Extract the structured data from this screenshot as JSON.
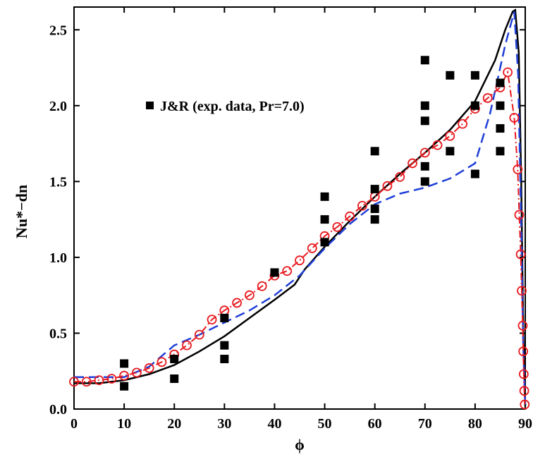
{
  "chart_data": {
    "type": "scatter",
    "xlabel": "ϕ",
    "ylabel": "Nu*−dn",
    "xlim": [
      0,
      90
    ],
    "ylim": [
      0,
      2.65
    ],
    "x_ticks": [
      "0",
      "10",
      "20",
      "30",
      "40",
      "50",
      "60",
      "70",
      "80",
      "90"
    ],
    "y_ticks": [
      "0.0",
      "0.5",
      "1.0",
      "1.5",
      "2.0",
      "2.5"
    ],
    "grid": false,
    "legend_position": "top-left",
    "legend": [
      {
        "label": "J&R (exp. data, Pr=7.0)",
        "marker": "square",
        "color": "#000000"
      }
    ],
    "series": [
      {
        "name": "J&R (exp. data, Pr=7.0)",
        "style": "markers-square",
        "color": "#000000",
        "points": [
          [
            10,
            0.15
          ],
          [
            10,
            0.3
          ],
          [
            20,
            0.2
          ],
          [
            20,
            0.33
          ],
          [
            30,
            0.33
          ],
          [
            30,
            0.42
          ],
          [
            30,
            0.6
          ],
          [
            40,
            0.9
          ],
          [
            50,
            1.1
          ],
          [
            50,
            1.25
          ],
          [
            50,
            1.4
          ],
          [
            60,
            1.25
          ],
          [
            60,
            1.32
          ],
          [
            60,
            1.45
          ],
          [
            60,
            1.7
          ],
          [
            70,
            1.5
          ],
          [
            70,
            1.6
          ],
          [
            70,
            1.9
          ],
          [
            70,
            2.0
          ],
          [
            70,
            2.3
          ],
          [
            75,
            1.7
          ],
          [
            75,
            2.2
          ],
          [
            80,
            1.55
          ],
          [
            80,
            2.0
          ],
          [
            80,
            2.2
          ],
          [
            85,
            1.7
          ],
          [
            85,
            1.85
          ],
          [
            85,
            2.0
          ],
          [
            85,
            2.15
          ]
        ]
      },
      {
        "style": "solid",
        "color": "#000000",
        "points": [
          [
            0,
            0.17
          ],
          [
            5,
            0.17
          ],
          [
            10,
            0.19
          ],
          [
            15,
            0.23
          ],
          [
            20,
            0.29
          ],
          [
            25,
            0.38
          ],
          [
            30,
            0.48
          ],
          [
            35,
            0.6
          ],
          [
            40,
            0.72
          ],
          [
            44,
            0.82
          ],
          [
            46,
            0.92
          ],
          [
            50,
            1.07
          ],
          [
            55,
            1.24
          ],
          [
            60,
            1.4
          ],
          [
            65,
            1.55
          ],
          [
            70,
            1.69
          ],
          [
            75,
            1.84
          ],
          [
            80,
            2.03
          ],
          [
            84,
            2.3
          ],
          [
            86,
            2.5
          ],
          [
            87.5,
            2.62
          ],
          [
            88,
            2.63
          ],
          [
            88.7,
            2.35
          ],
          [
            89.2,
            1.5
          ],
          [
            89.6,
            0.5
          ],
          [
            90,
            0.02
          ]
        ]
      },
      {
        "style": "dashed",
        "color": "#1f3fd8",
        "points": [
          [
            0,
            0.21
          ],
          [
            5,
            0.21
          ],
          [
            10,
            0.21
          ],
          [
            15,
            0.28
          ],
          [
            20,
            0.42
          ],
          [
            25,
            0.49
          ],
          [
            30,
            0.57
          ],
          [
            35,
            0.65
          ],
          [
            40,
            0.75
          ],
          [
            45,
            0.88
          ],
          [
            50,
            1.06
          ],
          [
            55,
            1.22
          ],
          [
            60,
            1.35
          ],
          [
            65,
            1.42
          ],
          [
            70,
            1.46
          ],
          [
            75,
            1.52
          ],
          [
            80,
            1.62
          ],
          [
            83,
            1.95
          ],
          [
            86,
            2.4
          ],
          [
            87.8,
            2.62
          ],
          [
            88.6,
            2.2
          ],
          [
            89.2,
            1.2
          ],
          [
            89.6,
            0.4
          ],
          [
            90,
            0.02
          ]
        ]
      },
      {
        "style": "dash-dot-circles",
        "color": "#e8191e",
        "points": [
          [
            0,
            0.18
          ],
          [
            2.5,
            0.18
          ],
          [
            5,
            0.19
          ],
          [
            7.5,
            0.2
          ],
          [
            10,
            0.22
          ],
          [
            12.5,
            0.24
          ],
          [
            15,
            0.27
          ],
          [
            17.5,
            0.31
          ],
          [
            20,
            0.36
          ],
          [
            22.5,
            0.42
          ],
          [
            25,
            0.49
          ],
          [
            27.5,
            0.59
          ],
          [
            30,
            0.65
          ],
          [
            32.5,
            0.7
          ],
          [
            35,
            0.75
          ],
          [
            37.5,
            0.81
          ],
          [
            40,
            0.88
          ],
          [
            42.5,
            0.91
          ],
          [
            45,
            0.98
          ],
          [
            47.5,
            1.06
          ],
          [
            50,
            1.14
          ],
          [
            52.5,
            1.2
          ],
          [
            55,
            1.27
          ],
          [
            57.5,
            1.34
          ],
          [
            60,
            1.4
          ],
          [
            62.5,
            1.47
          ],
          [
            65,
            1.53
          ],
          [
            67.5,
            1.62
          ],
          [
            70,
            1.69
          ],
          [
            72.5,
            1.74
          ],
          [
            75,
            1.8
          ],
          [
            77.5,
            1.88
          ],
          [
            80,
            1.98
          ],
          [
            82.5,
            2.05
          ],
          [
            85,
            2.12
          ],
          [
            86.5,
            2.22
          ],
          [
            87.8,
            1.92
          ],
          [
            88.5,
            1.58
          ],
          [
            88.8,
            1.28
          ],
          [
            89.1,
            1.02
          ],
          [
            89.3,
            0.78
          ],
          [
            89.5,
            0.55
          ],
          [
            89.6,
            0.38
          ],
          [
            89.7,
            0.23
          ],
          [
            89.8,
            0.12
          ],
          [
            89.9,
            0.03
          ]
        ]
      }
    ]
  }
}
